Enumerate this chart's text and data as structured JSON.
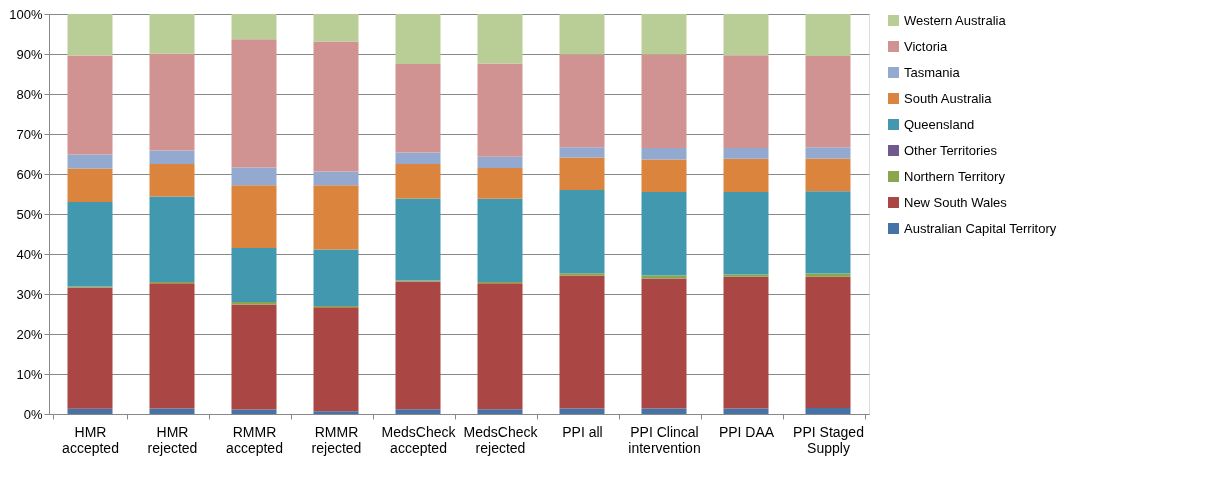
{
  "chart_data": {
    "type": "bar",
    "stacked": true,
    "categories": [
      "HMR\naccepted",
      "HMR\nrejected",
      "RMMR\naccepted",
      "RMMR\nrejected",
      "MedsCheck\naccepted",
      "MedsCheck\nrejected",
      "PPI all",
      "PPI Clincal\nintervention",
      "PPI DAA",
      "PPI Staged\nSupply"
    ],
    "series": [
      {
        "name": "Australian Capital Territory",
        "color": "#4572a7",
        "values": [
          1.3,
          1.4,
          1.1,
          0.7,
          1.2,
          1.2,
          1.4,
          1.4,
          1.4,
          1.5
        ]
      },
      {
        "name": "New South Wales",
        "color": "#aa4643",
        "values": [
          30.3,
          31.3,
          26.3,
          26.0,
          31.9,
          31.5,
          33.2,
          32.5,
          32.9,
          32.8
        ]
      },
      {
        "name": "Northern Territory",
        "color": "#89a54e",
        "values": [
          0.3,
          0.3,
          0.6,
          0.3,
          0.3,
          0.3,
          0.6,
          0.7,
          0.6,
          0.8
        ]
      },
      {
        "name": "Other Territories",
        "color": "#71588f",
        "values": [
          0,
          0,
          0,
          0,
          0,
          0,
          0,
          0,
          0,
          0
        ]
      },
      {
        "name": "Queensland",
        "color": "#4198af",
        "values": [
          21.1,
          21.4,
          13.5,
          14.1,
          20.5,
          20.8,
          20.8,
          20.9,
          20.6,
          20.6
        ]
      },
      {
        "name": "South Australia",
        "color": "#db843d",
        "values": [
          8.4,
          8.1,
          15.7,
          16.1,
          8.6,
          7.7,
          8.1,
          8.1,
          8.3,
          8.2
        ]
      },
      {
        "name": "Tasmania",
        "color": "#93a9cf",
        "values": [
          3.5,
          3.4,
          4.4,
          3.4,
          2.9,
          2.8,
          2.6,
          2.9,
          2.7,
          2.8
        ]
      },
      {
        "name": "Victoria",
        "color": "#d19392",
        "values": [
          24.7,
          24.2,
          32.1,
          32.5,
          22.1,
          23.3,
          23.2,
          23.4,
          23.2,
          22.8
        ]
      },
      {
        "name": "Western Australia",
        "color": "#b9cd96",
        "values": [
          10.4,
          9.9,
          6.3,
          6.9,
          12.5,
          12.4,
          10.1,
          10.1,
          10.3,
          10.5
        ]
      }
    ],
    "ylim": [
      0,
      100
    ],
    "yticks": [
      {
        "value": 0,
        "label": "0%"
      },
      {
        "value": 10,
        "label": "10%"
      },
      {
        "value": 20,
        "label": "20%"
      },
      {
        "value": 30,
        "label": "30%"
      },
      {
        "value": 40,
        "label": "40%"
      },
      {
        "value": 50,
        "label": "50%"
      },
      {
        "value": 60,
        "label": "60%"
      },
      {
        "value": 70,
        "label": "70%"
      },
      {
        "value": 80,
        "label": "80%"
      },
      {
        "value": 90,
        "label": "90%"
      },
      {
        "value": 100,
        "label": "100%"
      }
    ],
    "grid": "y",
    "legend": "right"
  }
}
